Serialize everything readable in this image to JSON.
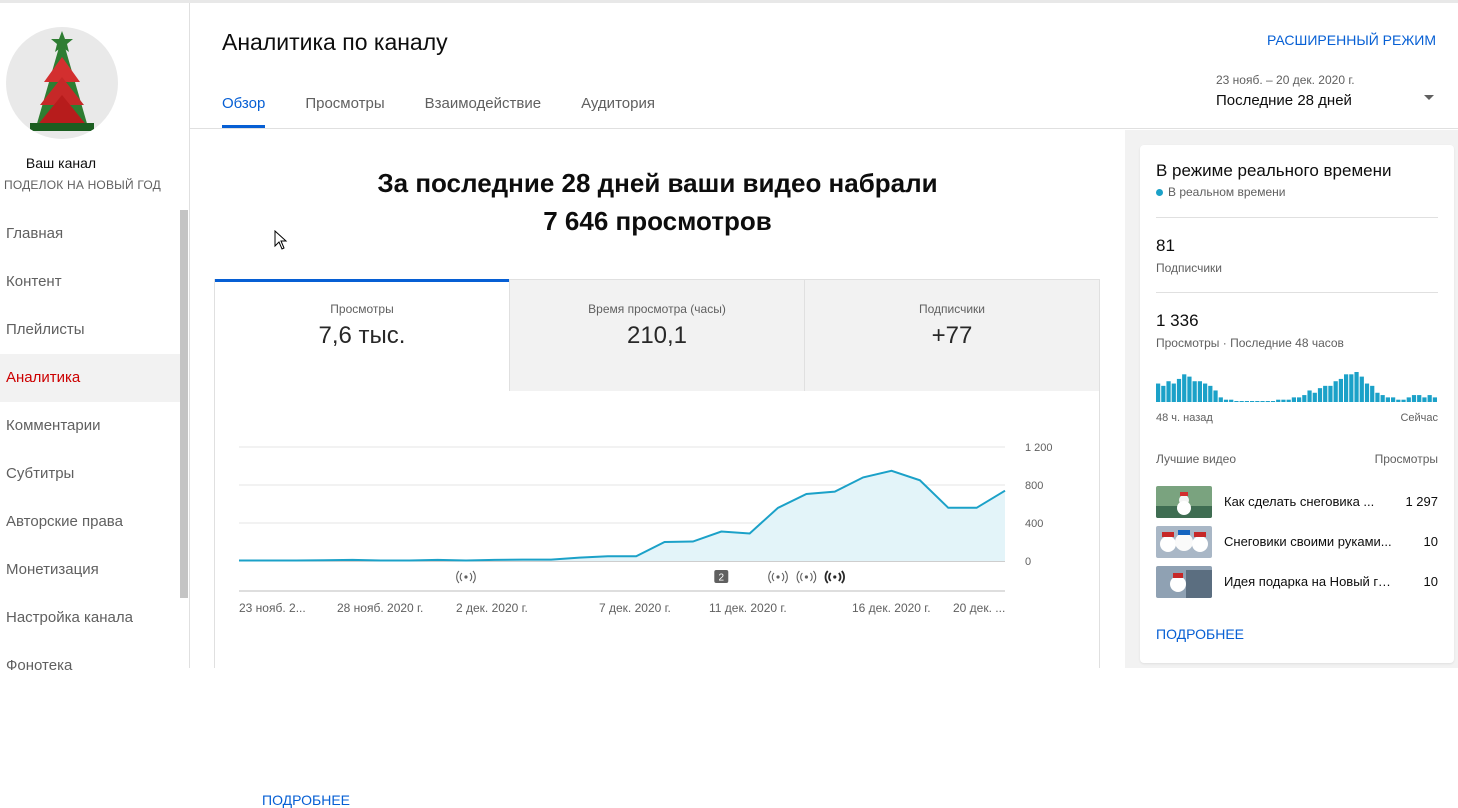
{
  "sidebar": {
    "channel_title": "Ваш канал",
    "channel_subtitle": "ПОДЕЛОК НА НОВЫЙ ГОД",
    "items": [
      {
        "label": "Главная"
      },
      {
        "label": "Контент"
      },
      {
        "label": "Плейлисты"
      },
      {
        "label": "Аналитика",
        "active": true
      },
      {
        "label": "Комментарии"
      },
      {
        "label": "Субтитры"
      },
      {
        "label": "Авторские права"
      },
      {
        "label": "Монетизация"
      },
      {
        "label": "Настройка канала"
      },
      {
        "label": "Фонотека"
      }
    ]
  },
  "header": {
    "title": "Аналитика по каналу",
    "advanced_mode": "РАСШИРЕННЫЙ РЕЖИМ",
    "tabs": [
      {
        "label": "Обзор",
        "active": true
      },
      {
        "label": "Просмотры"
      },
      {
        "label": "Взаимодействие"
      },
      {
        "label": "Аудитория"
      }
    ],
    "date_range": "23 нояб. – 20 дек. 2020 г.",
    "date_label": "Последние 28 дней"
  },
  "main": {
    "headline_line1": "За последние 28 дней ваши видео набрали",
    "headline_line2": "7 646 просмотров",
    "metrics": [
      {
        "label": "Просмотры",
        "value": "7,6 тыс.",
        "active": true
      },
      {
        "label": "Время просмотра (часы)",
        "value": "210,1"
      },
      {
        "label": "Подписчики",
        "value": "+77"
      }
    ],
    "more_link": "ПОДРОБНЕЕ"
  },
  "chart_data": {
    "type": "area",
    "x_tick_labels": [
      "23 нояб. 2...",
      "28 нояб. 2020 г.",
      "2 дек. 2020 г.",
      "7 дек. 2020 г.",
      "11 дек. 2020 г.",
      "16 дек. 2020 г.",
      "20 дек. ..."
    ],
    "y_tick_labels": [
      "1 200",
      "800",
      "400",
      "0"
    ],
    "ylim": [
      0,
      1200
    ],
    "x": [
      "23 нояб.",
      "24 нояб.",
      "25 нояб.",
      "26 нояб.",
      "27 нояб.",
      "28 нояб.",
      "29 нояб.",
      "30 нояб.",
      "1 дек.",
      "2 дек.",
      "3 дек.",
      "4 дек.",
      "5 дек.",
      "6 дек.",
      "7 дек.",
      "8 дек.",
      "9 дек.",
      "10 дек.",
      "11 дек.",
      "12 дек.",
      "13 дек.",
      "14 дек.",
      "15 дек.",
      "16 дек.",
      "17 дек.",
      "18 дек.",
      "19 дек.",
      "20 дек."
    ],
    "values": [
      5,
      5,
      5,
      8,
      12,
      5,
      5,
      12,
      5,
      12,
      15,
      15,
      35,
      50,
      50,
      200,
      205,
      310,
      290,
      560,
      705,
      730,
      880,
      950,
      850,
      560,
      560,
      740
    ],
    "markers": [
      {
        "x_index": 8,
        "kind": "broadcast-icon"
      },
      {
        "x_index": 17,
        "kind": "count-badge",
        "label": "2"
      },
      {
        "x_index": 19,
        "kind": "broadcast-icon"
      },
      {
        "x_index": 20,
        "kind": "broadcast-icon"
      },
      {
        "x_index": 21,
        "kind": "broadcast-icon-bold"
      }
    ],
    "color": "#1ba1c8",
    "grid": true
  },
  "realtime": {
    "title": "В режиме реального времени",
    "live_label": "В реальном времени",
    "subscribers_value": "81",
    "subscribers_label": "Подписчики",
    "views_value": "1 336",
    "views_label": "Просмотры · Последние 48 часов",
    "spark_left": "48 ч. назад",
    "spark_right": "Сейчас",
    "spark_values": [
      8,
      7,
      9,
      8,
      10,
      12,
      11,
      9,
      9,
      8,
      7,
      5,
      2,
      1,
      1,
      0,
      0,
      0,
      0,
      0,
      0,
      0,
      0,
      1,
      1,
      1,
      2,
      2,
      3,
      5,
      4,
      6,
      7,
      7,
      9,
      10,
      12,
      12,
      13,
      11,
      8,
      7,
      4,
      3,
      2,
      2,
      1,
      1,
      2,
      3,
      3,
      2,
      3,
      2
    ],
    "top_videos_header": "Лучшие видео",
    "top_videos_metric": "Просмотры",
    "videos": [
      {
        "title": "Как сделать снеговика ...",
        "views": "1 297"
      },
      {
        "title": "Снеговики своими руками...",
        "views": "10"
      },
      {
        "title": "Идея подарка на Новый го...",
        "views": "10"
      }
    ],
    "more_link": "ПОДРОБНЕЕ"
  }
}
